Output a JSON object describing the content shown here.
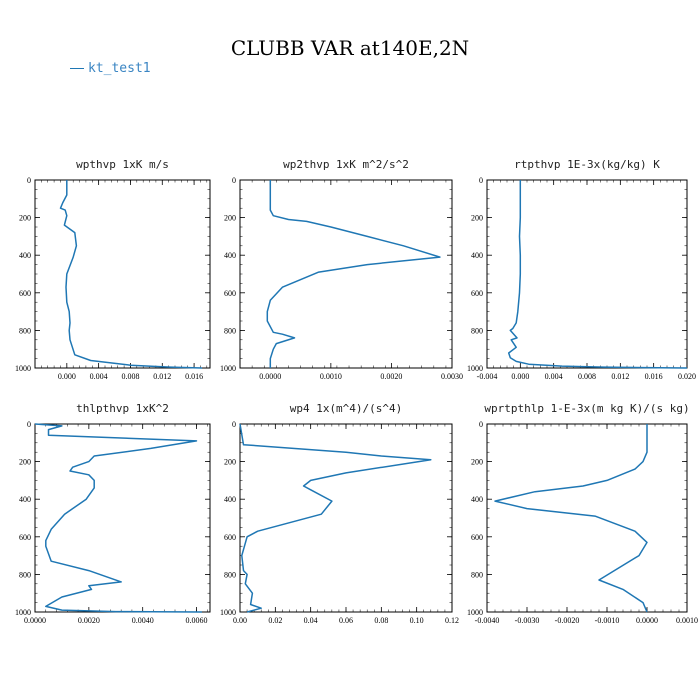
{
  "title": "CLUBB VAR at140E,2N",
  "legend": {
    "label": "kt_test1",
    "color": "#1f77b4"
  },
  "chart_data": [
    {
      "type": "line",
      "title": "wpthvp   1xK m/s",
      "xlim": [
        -0.004,
        0.018
      ],
      "ylim": [
        1000,
        0
      ],
      "xticks": [
        "0.000",
        "0.004",
        "0.008",
        "0.012",
        "0.016"
      ],
      "yticks": [
        "0",
        "200",
        "400",
        "600",
        "800",
        "1000"
      ],
      "x": [
        0.0,
        0.0,
        -0.0005,
        -0.0008,
        -0.0002,
        0.0,
        -0.0003,
        0.001,
        0.0012,
        0.0008,
        0.0,
        -0.0001,
        0.0,
        0.0003,
        0.0004,
        0.0003,
        0.0004,
        0.001,
        0.003,
        0.008,
        0.013,
        0.017
      ],
      "y": [
        0,
        80,
        120,
        150,
        160,
        190,
        240,
        280,
        350,
        410,
        500,
        570,
        650,
        700,
        760,
        800,
        850,
        930,
        960,
        985,
        995,
        1000
      ]
    },
    {
      "type": "line",
      "title": "wp2thvp   1xK m^2/s^2",
      "xlim": [
        -0.0005,
        0.003
      ],
      "ylim": [
        1000,
        0
      ],
      "xticks": [
        "0.0000",
        "0.0010",
        "0.0020",
        "0.0030"
      ],
      "yticks": [
        "0",
        "200",
        "400",
        "600",
        "800",
        "1000"
      ],
      "x": [
        0.0,
        0.0,
        0.0,
        5e-05,
        0.0003,
        0.0006,
        0.001,
        0.0016,
        0.0022,
        0.0028,
        0.0016,
        0.0008,
        0.0002,
        0.0,
        -5e-05,
        -5e-05,
        5e-05,
        0.0002,
        0.0004,
        0.0001,
        5e-05,
        0.0,
        0.0
      ],
      "y": [
        0,
        80,
        160,
        190,
        210,
        220,
        250,
        300,
        350,
        410,
        450,
        490,
        570,
        640,
        700,
        750,
        810,
        820,
        840,
        870,
        900,
        950,
        1000
      ]
    },
    {
      "type": "line",
      "title": "rtpthvp   1E-3x(kg/kg) K",
      "xlim": [
        -0.004,
        0.02
      ],
      "ylim": [
        1000,
        0
      ],
      "xticks": [
        "-0.004",
        "0.000",
        "0.004",
        "0.008",
        "0.012",
        "0.016",
        "0.020"
      ],
      "yticks": [
        "0",
        "200",
        "400",
        "600",
        "800",
        "1000"
      ],
      "x": [
        0.0,
        0.0,
        -0.0001,
        0.0,
        0.0,
        -0.0001,
        -0.0003,
        -0.0005,
        -0.0009,
        -0.0012,
        -0.0004,
        -0.0011,
        -0.0005,
        -0.0014,
        -0.0012,
        -0.0005,
        0.001,
        0.005,
        0.01,
        0.015,
        0.02
      ],
      "y": [
        0,
        200,
        300,
        400,
        500,
        600,
        700,
        760,
        790,
        800,
        840,
        850,
        890,
        920,
        945,
        965,
        980,
        990,
        995,
        998,
        1000
      ]
    },
    {
      "type": "line",
      "title": "thlpthvp   1xK^2",
      "xlim": [
        0.0,
        0.0065
      ],
      "ylim": [
        1000,
        0
      ],
      "xticks": [
        "0.0000",
        "0.0020",
        "0.0040",
        "0.0060"
      ],
      "yticks": [
        "0",
        "200",
        "400",
        "600",
        "800",
        "1000"
      ],
      "x": [
        0.0,
        0.001,
        0.0005,
        0.0005,
        0.006,
        0.0043,
        0.0022,
        0.002,
        0.0014,
        0.0013,
        0.002,
        0.0022,
        0.0022,
        0.0019,
        0.0011,
        0.0006,
        0.0004,
        0.0004,
        0.0006,
        0.002,
        0.0032,
        0.002,
        0.0021,
        0.001,
        0.0004,
        0.001,
        0.003,
        0.0062
      ],
      "y": [
        0,
        10,
        30,
        60,
        90,
        130,
        170,
        200,
        230,
        250,
        270,
        300,
        340,
        400,
        480,
        560,
        620,
        650,
        730,
        780,
        840,
        860,
        880,
        920,
        970,
        990,
        998,
        1000
      ]
    },
    {
      "type": "line",
      "title": "wp4   1x(m^4)/(s^4)",
      "xlim": [
        0.0,
        0.12
      ],
      "ylim": [
        1000,
        0
      ],
      "xticks": [
        "0.00",
        "0.02",
        "0.04",
        "0.06",
        "0.08",
        "0.10",
        "0.12"
      ],
      "yticks": [
        "0",
        "200",
        "400",
        "600",
        "800",
        "1000"
      ],
      "x": [
        0.0,
        0.002,
        0.06,
        0.08,
        0.108,
        0.06,
        0.04,
        0.036,
        0.04,
        0.052,
        0.046,
        0.01,
        0.004,
        0.001,
        0.002,
        0.004,
        0.003,
        0.007,
        0.006,
        0.012,
        0.004
      ],
      "y": [
        0,
        110,
        150,
        170,
        190,
        260,
        300,
        330,
        350,
        410,
        480,
        570,
        600,
        700,
        780,
        800,
        850,
        900,
        960,
        980,
        1000
      ]
    },
    {
      "type": "line",
      "title": "wprtpthlp   1-E-3x(m kg K)/(s kg)",
      "xlim": [
        -0.004,
        0.001
      ],
      "ylim": [
        1000,
        0
      ],
      "xticks": [
        "-0.0040",
        "-0.0030",
        "-0.0020",
        "-0.0010",
        "0.0000",
        "0.0010"
      ],
      "yticks": [
        "0",
        "200",
        "400",
        "600",
        "800",
        "1000"
      ],
      "x": [
        0.0,
        0.0,
        -0.0001,
        -0.0003,
        -0.001,
        -0.0016,
        -0.0028,
        -0.0038,
        -0.003,
        -0.0013,
        -0.0003,
        0.0,
        -0.0002,
        -0.0012,
        -0.0006,
        -0.0001,
        0.0
      ],
      "y": [
        0,
        150,
        200,
        240,
        300,
        330,
        360,
        410,
        450,
        490,
        570,
        630,
        700,
        830,
        880,
        950,
        1000
      ]
    }
  ]
}
